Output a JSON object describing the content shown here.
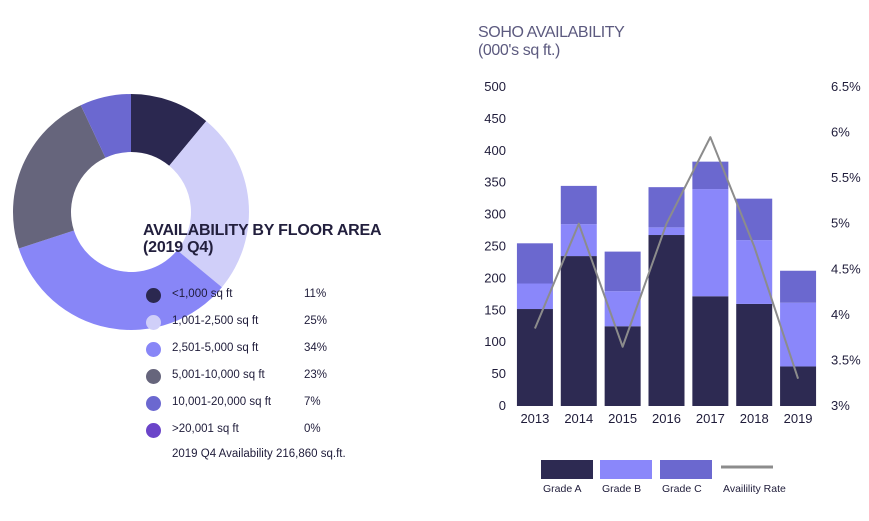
{
  "colors": {
    "grade_a": "#2d2a52",
    "grade_b": "#8a87fa",
    "grade_c": "#6b68cf",
    "rate_line": "#8c8c8c",
    "text": "#1f1c3a"
  },
  "chart_data": [
    {
      "type": "pie",
      "style": "donut",
      "title": "AVAILABILITY BY FLOOR AREA",
      "subtitle": "(2019 Q4)",
      "slices": [
        {
          "label": "<1,000 sq ft",
          "value": 11,
          "display": "11%",
          "color": "#2b2850"
        },
        {
          "label": "1,001-2,500 sq ft",
          "value": 25,
          "display": "25%",
          "color": "#d0cff9"
        },
        {
          "label": "2,501-5,000 sq ft",
          "value": 34,
          "display": "34%",
          "color": "#8886f7"
        },
        {
          "label": "5,001-10,000 sq ft",
          "value": 23,
          "display": "23%",
          "color": "#66657c"
        },
        {
          "label": "10,001-20,000 sq ft",
          "value": 7,
          "display": "7%",
          "color": "#6b68d0"
        },
        {
          "label": ">20,001 sq ft",
          "value": 0,
          "display": "0%",
          "color": "#6b45c9"
        }
      ],
      "note": "2019 Q4 Availability 216,860 sq.ft."
    },
    {
      "type": "bar",
      "stacked": true,
      "title": "SOHO AVAILABILITY",
      "subtitle": "(000's sq ft.)",
      "categories": [
        "2013",
        "2014",
        "2015",
        "2016",
        "2017",
        "2018",
        "2019"
      ],
      "series": [
        {
          "name": "Grade A",
          "values": [
            152,
            235,
            125,
            268,
            172,
            160,
            62
          ]
        },
        {
          "name": "Grade B",
          "values": [
            40,
            50,
            55,
            12,
            168,
            100,
            100
          ]
        },
        {
          "name": "Grade C",
          "values": [
            63,
            60,
            62,
            63,
            43,
            65,
            50
          ]
        }
      ],
      "line_series": {
        "name": "Availility Rate",
        "values": [
          3.85,
          5.0,
          3.65,
          5.0,
          5.95,
          4.75,
          3.3
        ]
      },
      "ylim": [
        0,
        500
      ],
      "y_ticks": [
        "0",
        "50",
        "100",
        "150",
        "200",
        "250",
        "300",
        "350",
        "400",
        "450",
        "500"
      ],
      "y2lim": [
        3,
        6.5
      ],
      "y2_ticks": [
        "3%",
        "3.5%",
        "4%",
        "4.5%",
        "5%",
        "5.5%",
        "6%",
        "6.5%"
      ],
      "legend": [
        "Grade A",
        "Grade B",
        "Grade C",
        "Availility Rate"
      ],
      "legend_position": "bottom"
    }
  ]
}
